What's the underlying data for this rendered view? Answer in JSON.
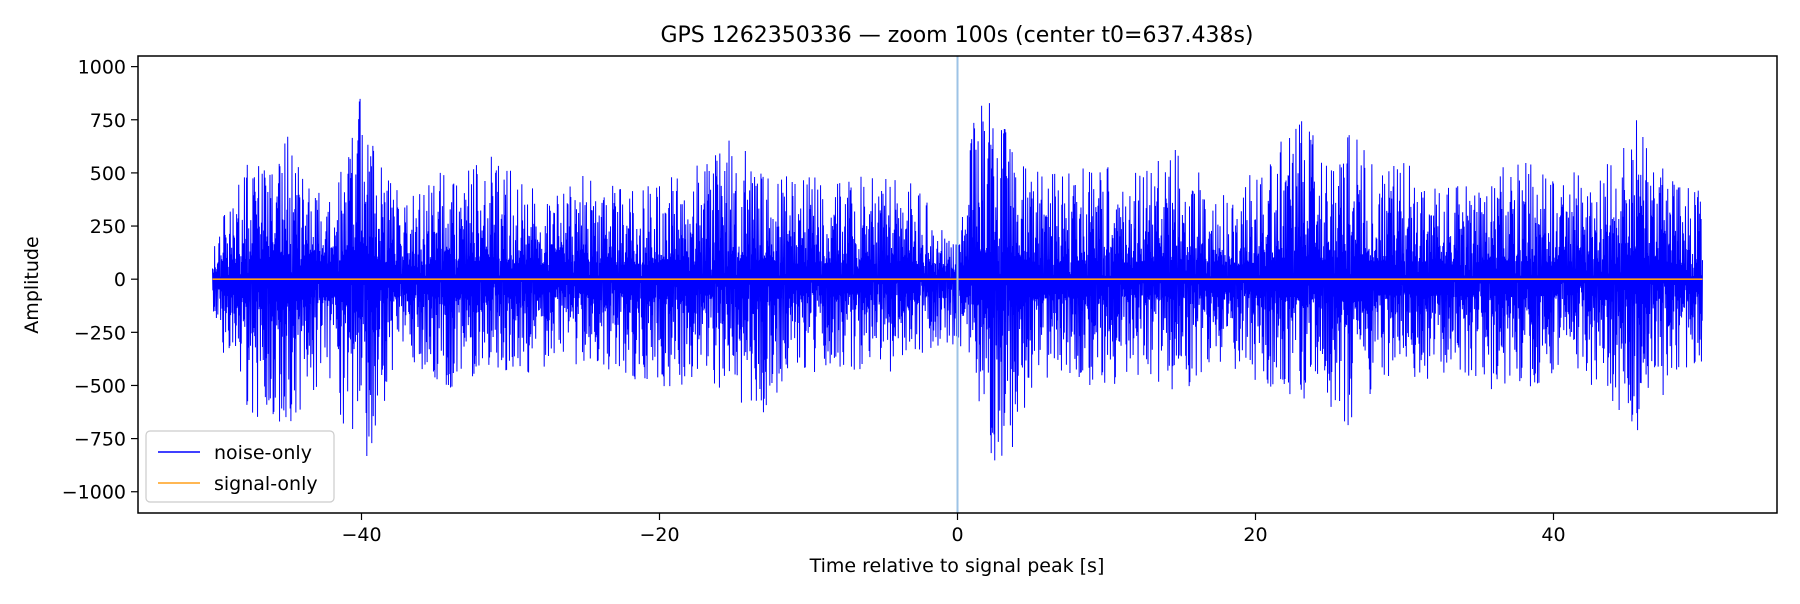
{
  "chart_data": {
    "type": "line",
    "title": "GPS 1262350336 — zoom 100s (center t0=637.438s)",
    "xlabel": "Time relative to signal peak [s]",
    "ylabel": "Amplitude",
    "xlim": [
      -55,
      55
    ],
    "ylim": [
      -1100,
      1050
    ],
    "x_ticks": [
      -40,
      -20,
      0,
      20,
      40
    ],
    "x_tick_labels": [
      "−40",
      "−20",
      "0",
      "20",
      "40"
    ],
    "y_ticks": [
      1000,
      750,
      500,
      250,
      0,
      -250,
      -500,
      -750,
      -1000
    ],
    "y_tick_labels": [
      "1000",
      "750",
      "500",
      "250",
      "0",
      "−250",
      "−500",
      "−750",
      "−1000"
    ],
    "grid": false,
    "legend_position": "lower-left",
    "marker_line": {
      "x": 0,
      "color": "#9dc3e6"
    },
    "series": [
      {
        "name": "noise-only",
        "color": "#0000ff",
        "x_range": [
          -50,
          50
        ],
        "envelope_upper": [
          [
            -50,
            200
          ],
          [
            -48.5,
            420
          ],
          [
            -47.2,
            640
          ],
          [
            -46,
            560
          ],
          [
            -45,
            760
          ],
          [
            -43.5,
            550
          ],
          [
            -42,
            480
          ],
          [
            -41,
            660
          ],
          [
            -40.3,
            950
          ],
          [
            -39,
            570
          ],
          [
            -37,
            380
          ],
          [
            -35,
            500
          ],
          [
            -33,
            560
          ],
          [
            -31,
            590
          ],
          [
            -29,
            440
          ],
          [
            -27,
            420
          ],
          [
            -25,
            560
          ],
          [
            -23,
            440
          ],
          [
            -21,
            430
          ],
          [
            -19,
            540
          ],
          [
            -17,
            550
          ],
          [
            -15,
            680
          ],
          [
            -13,
            520
          ],
          [
            -11,
            480
          ],
          [
            -9,
            490
          ],
          [
            -7,
            490
          ],
          [
            -5,
            470
          ],
          [
            -3,
            520
          ],
          [
            -1,
            230
          ],
          [
            0,
            200
          ],
          [
            1.2,
            800
          ],
          [
            2.5,
            860
          ],
          [
            3.5,
            730
          ],
          [
            5,
            530
          ],
          [
            7,
            510
          ],
          [
            9,
            560
          ],
          [
            11,
            500
          ],
          [
            13,
            540
          ],
          [
            15,
            630
          ],
          [
            17,
            420
          ],
          [
            19,
            450
          ],
          [
            21,
            590
          ],
          [
            23,
            760
          ],
          [
            25,
            570
          ],
          [
            26.5,
            730
          ],
          [
            28,
            520
          ],
          [
            30,
            560
          ],
          [
            32,
            470
          ],
          [
            34,
            430
          ],
          [
            36,
            560
          ],
          [
            38,
            560
          ],
          [
            39.5,
            520
          ],
          [
            41,
            560
          ],
          [
            43,
            500
          ],
          [
            45.5,
            780
          ],
          [
            47,
            580
          ],
          [
            48.5,
            440
          ],
          [
            50,
            420
          ]
        ],
        "envelope_lower": [
          [
            -50,
            -240
          ],
          [
            -48.5,
            -500
          ],
          [
            -47.2,
            -690
          ],
          [
            -46,
            -680
          ],
          [
            -45,
            -750
          ],
          [
            -43.5,
            -540
          ],
          [
            -42,
            -470
          ],
          [
            -41,
            -820
          ],
          [
            -40.3,
            -1010
          ],
          [
            -39,
            -700
          ],
          [
            -37,
            -430
          ],
          [
            -35,
            -480
          ],
          [
            -33,
            -560
          ],
          [
            -31,
            -420
          ],
          [
            -29,
            -450
          ],
          [
            -27,
            -400
          ],
          [
            -25,
            -420
          ],
          [
            -23,
            -450
          ],
          [
            -21,
            -490
          ],
          [
            -19,
            -520
          ],
          [
            -17,
            -450
          ],
          [
            -15,
            -570
          ],
          [
            -13,
            -660
          ],
          [
            -11,
            -440
          ],
          [
            -9,
            -440
          ],
          [
            -7,
            -440
          ],
          [
            -5,
            -450
          ],
          [
            -3,
            -420
          ],
          [
            -1,
            -300
          ],
          [
            0,
            -320
          ],
          [
            1.2,
            -560
          ],
          [
            2.5,
            -880
          ],
          [
            3.5,
            -840
          ],
          [
            5,
            -510
          ],
          [
            7,
            -450
          ],
          [
            9,
            -510
          ],
          [
            11,
            -500
          ],
          [
            13,
            -470
          ],
          [
            15,
            -560
          ],
          [
            17,
            -400
          ],
          [
            19,
            -430
          ],
          [
            21,
            -540
          ],
          [
            23,
            -560
          ],
          [
            25,
            -600
          ],
          [
            26.5,
            -710
          ],
          [
            28,
            -510
          ],
          [
            30,
            -450
          ],
          [
            32,
            -480
          ],
          [
            34,
            -460
          ],
          [
            36,
            -560
          ],
          [
            38,
            -540
          ],
          [
            39.5,
            -520
          ],
          [
            41,
            -500
          ],
          [
            43,
            -520
          ],
          [
            45.5,
            -730
          ],
          [
            47,
            -620
          ],
          [
            48.5,
            -480
          ],
          [
            50,
            -420
          ]
        ]
      },
      {
        "name": "signal-only",
        "color": "#ff9f1a",
        "x": [
          -50,
          50
        ],
        "y": [
          0,
          0
        ]
      }
    ]
  }
}
